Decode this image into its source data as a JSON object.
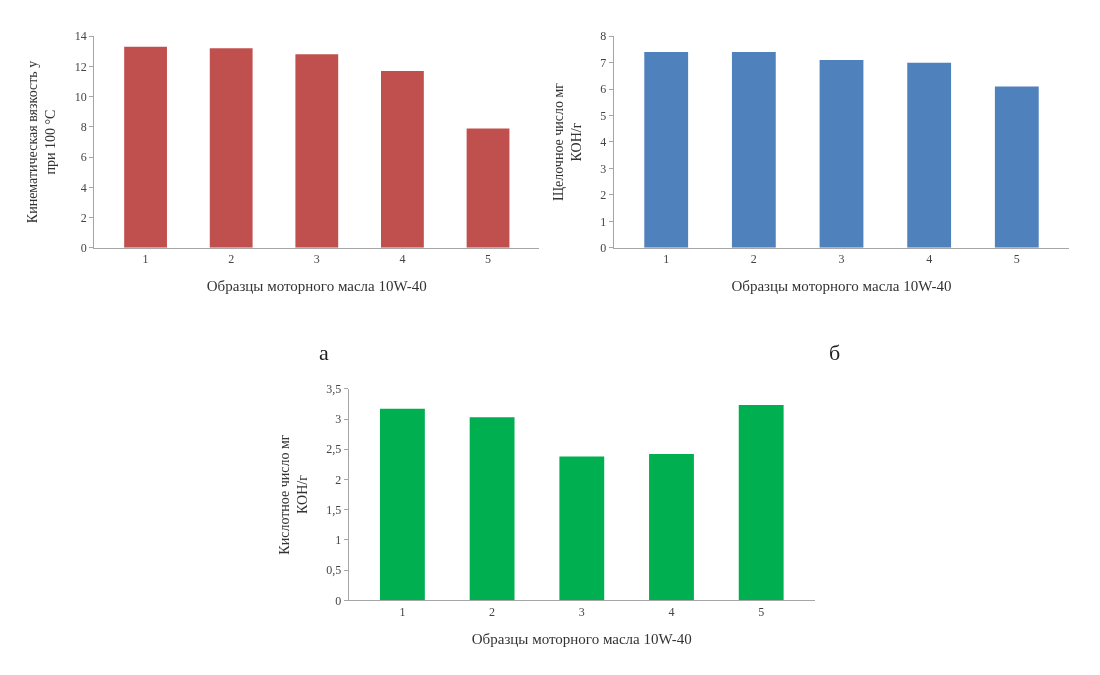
{
  "chart_data": [
    {
      "type": "bar",
      "categories": [
        "1",
        "2",
        "3",
        "4",
        "5"
      ],
      "values": [
        13.3,
        13.2,
        12.8,
        11.7,
        7.9
      ],
      "color": "#c0504d",
      "xlabel": "Образцы моторного масла 10W-40",
      "ylabel": "Кинематическая вязкость у\nпри 100 °С",
      "ylim": [
        0,
        14
      ],
      "yticks": [
        0,
        2,
        4,
        6,
        8,
        10,
        12,
        14
      ],
      "annotations": [
        "а"
      ]
    },
    {
      "type": "bar",
      "categories": [
        "1",
        "2",
        "3",
        "4",
        "5"
      ],
      "values": [
        7.4,
        7.4,
        7.1,
        7.0,
        6.1
      ],
      "color": "#4f81bd",
      "xlabel": "Образцы моторного масла 10W-40",
      "ylabel": "Щелочное число мг\nКОН/г",
      "ylim": [
        0,
        8
      ],
      "yticks": [
        0,
        1,
        2,
        3,
        4,
        5,
        6,
        7,
        8
      ],
      "annotations": [
        "б"
      ]
    },
    {
      "type": "bar",
      "categories": [
        "1",
        "2",
        "3",
        "4",
        "5"
      ],
      "values": [
        3.17,
        3.03,
        2.38,
        2.42,
        3.23
      ],
      "color": "#00b050",
      "xlabel": "Образцы моторного масла 10W-40",
      "ylabel": "Кислотное число мг\nКОН/г",
      "ylim": [
        0,
        3.5
      ],
      "yticks": [
        0,
        {
          "value": 0.5,
          "label": "0,5"
        },
        1,
        {
          "value": 1.5,
          "label": "1,5"
        },
        2,
        {
          "value": 2.5,
          "label": "2,5"
        },
        3,
        {
          "value": 3.5,
          "label": "3,5"
        }
      ]
    }
  ]
}
